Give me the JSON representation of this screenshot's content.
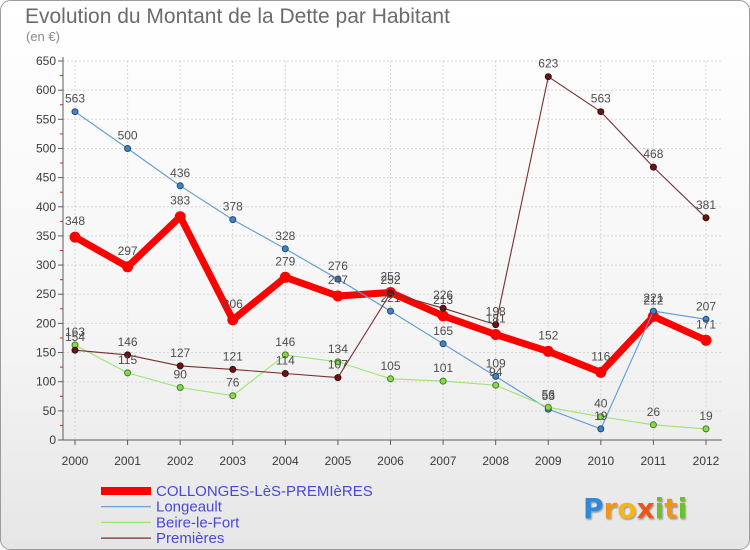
{
  "chart_data": {
    "type": "line",
    "title": "Evolution du Montant de la Dette par Habitant",
    "subtitle": "(en €)",
    "x": [
      "2000",
      "2001",
      "2002",
      "2003",
      "2004",
      "2005",
      "2006",
      "2007",
      "2008",
      "2009",
      "2010",
      "2011",
      "2012"
    ],
    "ylim": [
      0,
      650
    ],
    "yticks": [
      0,
      50,
      100,
      150,
      200,
      250,
      300,
      350,
      400,
      450,
      500,
      550,
      600,
      650
    ],
    "grid": true,
    "legend_position": "bottom-left",
    "series": [
      {
        "name": "COLLONGES-LèS-PREMIèRES",
        "color": "#ff0000",
        "marker_color": "#ff0000",
        "values": [
          348,
          297,
          383,
          206,
          279,
          247,
          253,
          213,
          181,
          152,
          116,
          212,
          171
        ]
      },
      {
        "name": "Longeault",
        "color": "#5c9ad6",
        "marker_color": "#3d85c6",
        "values": [
          563,
          500,
          436,
          378,
          328,
          276,
          221,
          165,
          109,
          53,
          19,
          221,
          207
        ]
      },
      {
        "name": "Beire-le-Fort",
        "color": "#9be673",
        "marker_color": "#84dc4c",
        "values": [
          163,
          115,
          90,
          76,
          146,
          134,
          105,
          101,
          94,
          56,
          40,
          26,
          19
        ]
      },
      {
        "name": "Premières",
        "color": "#7a2e2e",
        "marker_color": "#6a1515",
        "values": [
          154,
          146,
          127,
          121,
          114,
          107,
          252,
          226,
          198,
          623,
          563,
          468,
          381
        ]
      }
    ]
  },
  "logo": {
    "text": "Proxiti",
    "letter_colors": [
      "#2e8ad8",
      "#f0951a",
      "#f5b51e",
      "#e8581c",
      "#6cbf2e",
      "#f0951a",
      "#6cbf2e"
    ]
  }
}
